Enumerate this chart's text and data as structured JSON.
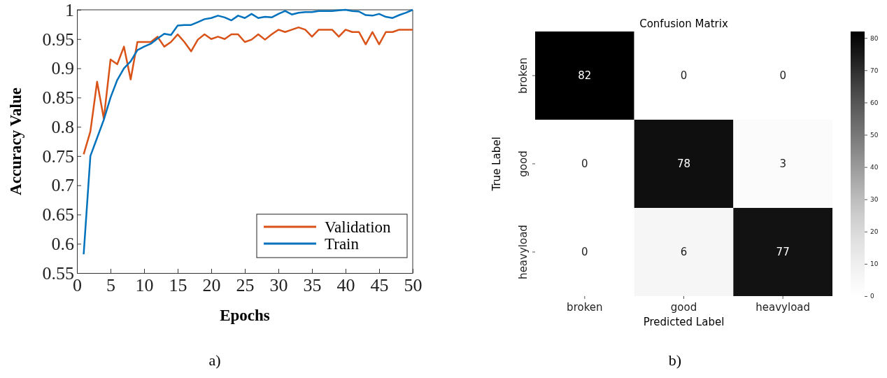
{
  "chart_data": [
    {
      "type": "line",
      "xlabel": "Epochs",
      "ylabel": "Accuracy Value",
      "annotations": [
        "a)"
      ],
      "x": [
        1,
        2,
        3,
        4,
        5,
        6,
        7,
        8,
        9,
        10,
        11,
        12,
        13,
        14,
        15,
        16,
        17,
        18,
        19,
        20,
        21,
        22,
        23,
        24,
        25,
        26,
        27,
        28,
        29,
        30,
        31,
        32,
        33,
        34,
        35,
        36,
        37,
        38,
        39,
        40,
        41,
        42,
        43,
        44,
        45,
        46,
        47,
        48,
        49,
        50
      ],
      "series": [
        {
          "name": "Validation",
          "color": "#d95319",
          "values": [
            0.753,
            0.792,
            0.877,
            0.814,
            0.915,
            0.907,
            0.937,
            0.881,
            0.945,
            0.945,
            0.945,
            0.954,
            0.937,
            0.945,
            0.958,
            0.945,
            0.929,
            0.949,
            0.958,
            0.95,
            0.954,
            0.95,
            0.958,
            0.958,
            0.945,
            0.949,
            0.958,
            0.949,
            0.958,
            0.966,
            0.962,
            0.966,
            0.97,
            0.966,
            0.954,
            0.966,
            0.966,
            0.966,
            0.954,
            0.966,
            0.962,
            0.962,
            0.941,
            0.962,
            0.941,
            0.962,
            0.962,
            0.966,
            0.966,
            0.966
          ]
        },
        {
          "name": "Train",
          "color": "#0072bd",
          "values": [
            0.582,
            0.75,
            0.781,
            0.812,
            0.85,
            0.88,
            0.9,
            0.912,
            0.931,
            0.937,
            0.942,
            0.951,
            0.959,
            0.957,
            0.973,
            0.974,
            0.974,
            0.979,
            0.984,
            0.986,
            0.99,
            0.987,
            0.982,
            0.99,
            0.986,
            0.993,
            0.986,
            0.988,
            0.987,
            0.993,
            0.998,
            0.992,
            0.995,
            0.996,
            0.996,
            0.998,
            0.998,
            0.998,
            0.999,
            1.0,
            0.998,
            0.997,
            0.991,
            0.99,
            0.993,
            0.988,
            0.986,
            0.991,
            0.995,
            1.0
          ]
        }
      ],
      "xlim": [
        0,
        50
      ],
      "xticks": [
        0,
        5,
        10,
        15,
        20,
        25,
        30,
        35,
        40,
        45,
        50
      ],
      "ylim": [
        0.55,
        1
      ],
      "yticks": [
        0.55,
        0.6,
        0.65,
        0.7,
        0.75,
        0.8,
        0.85,
        0.9,
        0.95,
        1
      ],
      "legend": "bottom right",
      "grid": false,
      "marker": "none",
      "line_style": "solid"
    },
    {
      "type": "heatmap",
      "title": "Confusion Matrix",
      "xlabel": "Predicted Label",
      "ylabel": "True Label",
      "annotations": [
        "b)"
      ],
      "categories": [
        "broken",
        "good",
        "heavyload"
      ],
      "y_categories": [
        "broken",
        "good",
        "heavyload"
      ],
      "cells": [
        [
          82,
          0,
          0
        ],
        [
          0,
          78,
          3
        ],
        [
          0,
          6,
          77
        ]
      ],
      "data_labels": true,
      "clim": [
        0,
        82
      ],
      "cticks": [
        0,
        10,
        20,
        30,
        40,
        50,
        60,
        70,
        80
      ]
    }
  ]
}
